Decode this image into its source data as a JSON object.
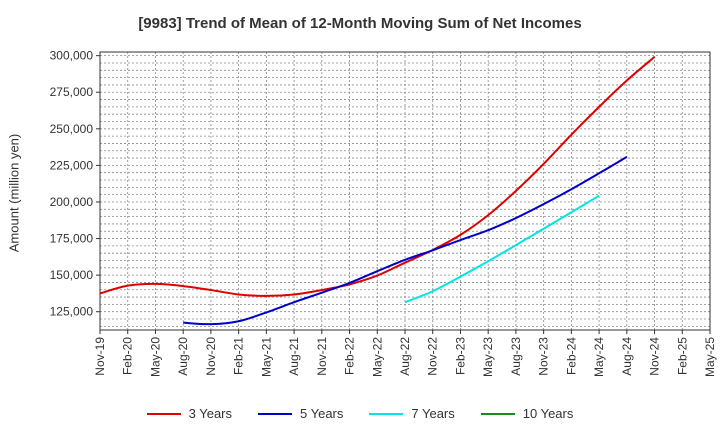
{
  "chart_data": {
    "type": "line",
    "title": "[9983]  Trend of Mean of 12-Month Moving Sum of Net Incomes",
    "xlabel": "",
    "ylabel": "Amount (million yen)",
    "categories": [
      "Nov-19",
      "Feb-20",
      "May-20",
      "Aug-20",
      "Nov-20",
      "Feb-21",
      "May-21",
      "Aug-21",
      "Nov-21",
      "Feb-22",
      "May-22",
      "Aug-22",
      "Nov-22",
      "Feb-23",
      "May-23",
      "Aug-23",
      "Nov-23",
      "Feb-24",
      "May-24",
      "Aug-24",
      "Nov-24",
      "Feb-25",
      "May-25"
    ],
    "ylim": [
      112500,
      302500
    ],
    "yticks": [
      125000,
      150000,
      175000,
      200000,
      225000,
      250000,
      275000,
      300000
    ],
    "ytick_labels": [
      "125,000",
      "150,000",
      "175,000",
      "200,000",
      "225,000",
      "250,000",
      "275,000",
      "300,000"
    ],
    "grid": true,
    "legend_position": "bottom",
    "series": [
      {
        "name": "3 Years",
        "color": "#e00000",
        "values": [
          137500,
          142800,
          144000,
          142500,
          139800,
          136800,
          135800,
          136800,
          139800,
          143700,
          149700,
          158500,
          167200,
          177500,
          191000,
          207600,
          226000,
          246000,
          265000,
          283000,
          299200,
          null,
          null
        ]
      },
      {
        "name": "5 Years",
        "color": "#0000cc",
        "values": [
          null,
          null,
          null,
          117500,
          116500,
          118500,
          124500,
          131500,
          138000,
          144700,
          152700,
          160500,
          167000,
          174000,
          180700,
          189000,
          198500,
          208700,
          219600,
          230800,
          null,
          null,
          null
        ]
      },
      {
        "name": "7 Years",
        "color": "#00e5e5",
        "values": [
          null,
          null,
          null,
          null,
          null,
          null,
          null,
          null,
          null,
          null,
          null,
          131500,
          139000,
          149000,
          159500,
          170500,
          181700,
          193000,
          204300,
          null,
          null,
          null,
          null
        ]
      },
      {
        "name": "10 Years",
        "color": "#1a8c1a",
        "values": [
          null,
          null,
          null,
          null,
          null,
          null,
          null,
          null,
          null,
          null,
          null,
          null,
          null,
          null,
          null,
          null,
          null,
          null,
          null,
          null,
          null,
          null,
          null
        ]
      }
    ]
  }
}
